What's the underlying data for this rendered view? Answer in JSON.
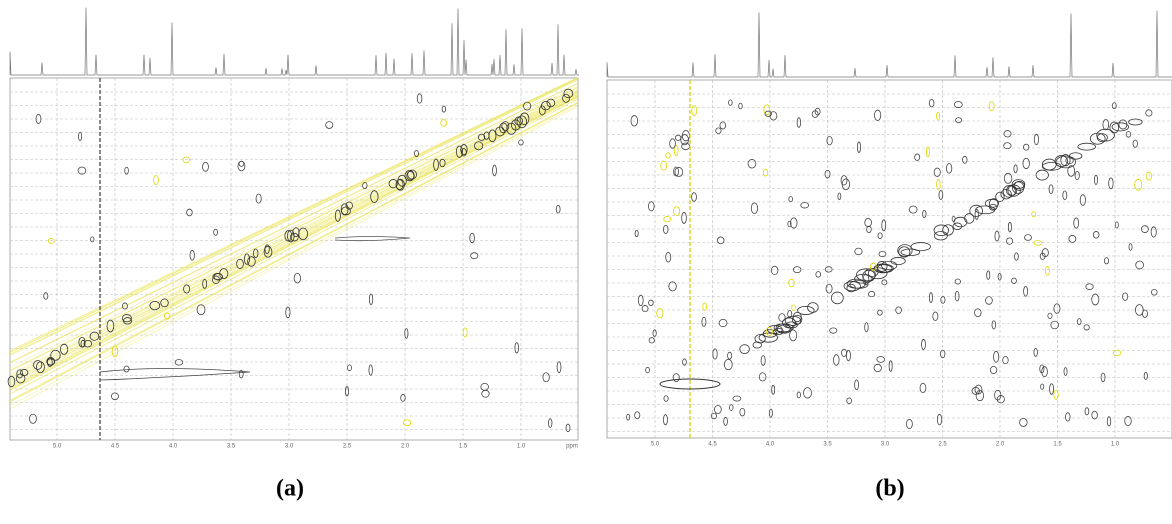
{
  "panels": [
    {
      "caption": "(a)",
      "x_tick_labels": [
        "5.0",
        "4.5",
        "4.0",
        "3.5",
        "3.0",
        "2.5",
        "2.0",
        "1.5",
        "1.0",
        "ppm"
      ]
    },
    {
      "caption": "(b)",
      "x_tick_labels": [
        "5.0",
        "4.5",
        "4.0",
        "3.5",
        "3.0",
        "2.5",
        "2.0",
        "1.5",
        "1.0"
      ]
    }
  ]
}
